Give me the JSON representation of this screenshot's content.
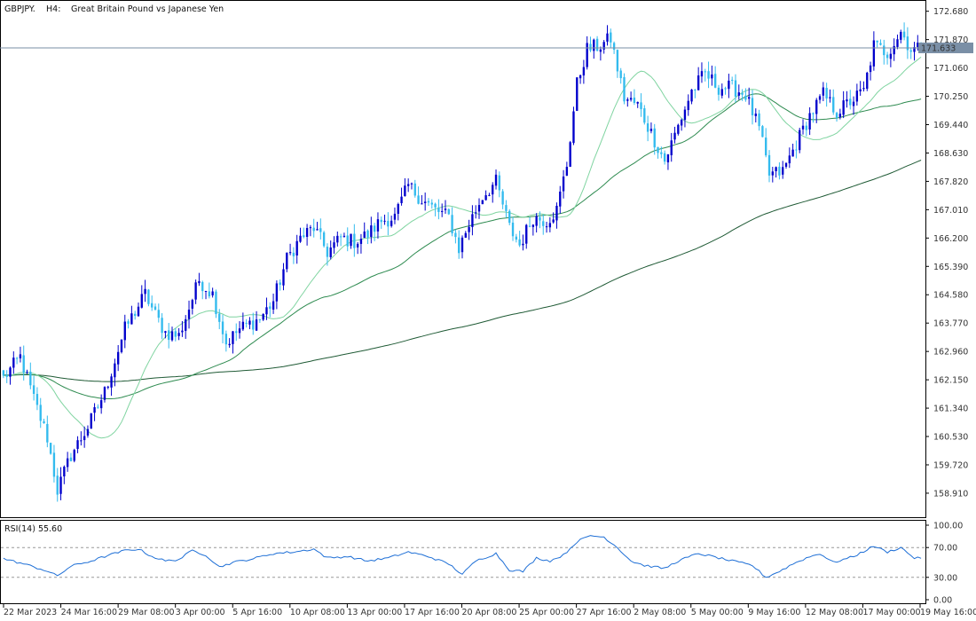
{
  "chart_data": {
    "type": "candlestick",
    "symbol": "GBPJPY.",
    "timeframe": "H4:",
    "description": "Great Britain Pound vs Japanese Yen",
    "ylim": [
      158.3,
      172.9
    ],
    "y_ticks": [
      "172.680",
      "171.870",
      "171.060",
      "170.250",
      "169.440",
      "168.630",
      "167.820",
      "167.010",
      "166.200",
      "165.390",
      "164.580",
      "163.770",
      "162.960",
      "162.150",
      "161.340",
      "160.530",
      "159.720",
      "158.910"
    ],
    "current_price": "171.633",
    "x_ticks": [
      "22 Mar 2023",
      "24 Mar 16:00",
      "29 Mar 08:00",
      "3 Apr 00:00",
      "5 Apr 16:00",
      "10 Apr 08:00",
      "13 Apr 00:00",
      "17 Apr 16:00",
      "20 Apr 08:00",
      "25 Apr 00:00",
      "27 Apr 16:00",
      "2 May 08:00",
      "5 May 00:00",
      "9 May 16:00",
      "12 May 08:00",
      "17 May 00:00",
      "19 May 16:00"
    ],
    "anchors": [
      [
        0,
        162.2
      ],
      [
        5,
        162.8
      ],
      [
        9,
        161.6
      ],
      [
        13,
        160.5
      ],
      [
        16,
        159.0
      ],
      [
        20,
        160.0
      ],
      [
        25,
        160.8
      ],
      [
        30,
        161.8
      ],
      [
        36,
        163.6
      ],
      [
        42,
        164.6
      ],
      [
        45,
        164.0
      ],
      [
        48,
        163.5
      ],
      [
        52,
        163.4
      ],
      [
        58,
        165.0
      ],
      [
        62,
        164.6
      ],
      [
        66,
        163.2
      ],
      [
        70,
        163.6
      ],
      [
        76,
        163.9
      ],
      [
        80,
        164.4
      ],
      [
        84,
        165.6
      ],
      [
        88,
        166.2
      ],
      [
        92,
        166.5
      ],
      [
        96,
        165.8
      ],
      [
        100,
        166.2
      ],
      [
        104,
        166.1
      ],
      [
        108,
        166.3
      ],
      [
        112,
        166.7
      ],
      [
        116,
        166.8
      ],
      [
        120,
        167.7
      ],
      [
        124,
        167.3
      ],
      [
        128,
        167.0
      ],
      [
        132,
        166.8
      ],
      [
        135,
        165.9
      ],
      [
        138,
        166.6
      ],
      [
        142,
        167.4
      ],
      [
        146,
        167.8
      ],
      [
        150,
        166.5
      ],
      [
        153,
        166.0
      ],
      [
        157,
        166.8
      ],
      [
        161,
        166.7
      ],
      [
        164,
        167.0
      ],
      [
        167,
        168.3
      ],
      [
        170,
        170.6
      ],
      [
        173,
        171.6
      ],
      [
        177,
        171.7
      ],
      [
        180,
        171.9
      ],
      [
        184,
        170.2
      ],
      [
        188,
        170.0
      ],
      [
        192,
        169.2
      ],
      [
        196,
        168.4
      ],
      [
        200,
        169.4
      ],
      [
        204,
        170.4
      ],
      [
        208,
        170.9
      ],
      [
        212,
        170.5
      ],
      [
        216,
        170.5
      ],
      [
        220,
        170.3
      ],
      [
        224,
        169.3
      ],
      [
        227,
        168.0
      ],
      [
        231,
        168.1
      ],
      [
        235,
        168.9
      ],
      [
        239,
        169.7
      ],
      [
        243,
        170.3
      ],
      [
        247,
        169.8
      ],
      [
        251,
        170.1
      ],
      [
        255,
        170.4
      ],
      [
        258,
        171.7
      ],
      [
        262,
        171.5
      ],
      [
        266,
        172.1
      ],
      [
        269,
        171.6
      ],
      [
        272,
        171.6
      ]
    ],
    "candle_count": 273,
    "ma_fast": {
      "period": 21,
      "color": "#7fd4a0"
    },
    "ma_mid": {
      "period": 55,
      "color": "#2e8b50"
    },
    "ma_slow": {
      "period": 200,
      "color": "#1f5a35",
      "start": 145.0
    },
    "colors": {
      "bull": "#0000cc",
      "bear": "#33bbee",
      "price_line": "#7a8fa6",
      "rsi": "#1e6fd6"
    },
    "rsi": {
      "label": "RSI(14) 55.60",
      "ylim": [
        0,
        100
      ],
      "y_ticks": [
        "100.00",
        "70.00",
        "30.00",
        "0.00"
      ],
      "levels": [
        70,
        30
      ],
      "anchors": [
        [
          0,
          55
        ],
        [
          6,
          48
        ],
        [
          12,
          40
        ],
        [
          16,
          32
        ],
        [
          20,
          45
        ],
        [
          26,
          52
        ],
        [
          30,
          58
        ],
        [
          36,
          66
        ],
        [
          40,
          68
        ],
        [
          44,
          58
        ],
        [
          48,
          52
        ],
        [
          52,
          54
        ],
        [
          56,
          66
        ],
        [
          60,
          60
        ],
        [
          64,
          44
        ],
        [
          68,
          50
        ],
        [
          74,
          55
        ],
        [
          80,
          62
        ],
        [
          86,
          64
        ],
        [
          92,
          68
        ],
        [
          96,
          56
        ],
        [
          102,
          58
        ],
        [
          108,
          52
        ],
        [
          114,
          56
        ],
        [
          120,
          64
        ],
        [
          126,
          58
        ],
        [
          132,
          48
        ],
        [
          136,
          34
        ],
        [
          140,
          52
        ],
        [
          146,
          62
        ],
        [
          150,
          40
        ],
        [
          154,
          38
        ],
        [
          158,
          56
        ],
        [
          162,
          52
        ],
        [
          166,
          60
        ],
        [
          170,
          78
        ],
        [
          174,
          86
        ],
        [
          178,
          84
        ],
        [
          182,
          70
        ],
        [
          186,
          52
        ],
        [
          190,
          46
        ],
        [
          196,
          42
        ],
        [
          200,
          52
        ],
        [
          206,
          62
        ],
        [
          212,
          56
        ],
        [
          218,
          50
        ],
        [
          222,
          46
        ],
        [
          226,
          30
        ],
        [
          230,
          38
        ],
        [
          234,
          48
        ],
        [
          238,
          56
        ],
        [
          242,
          62
        ],
        [
          246,
          50
        ],
        [
          252,
          58
        ],
        [
          258,
          72
        ],
        [
          262,
          64
        ],
        [
          266,
          70
        ],
        [
          270,
          56
        ],
        [
          272,
          55.6
        ]
      ]
    }
  }
}
